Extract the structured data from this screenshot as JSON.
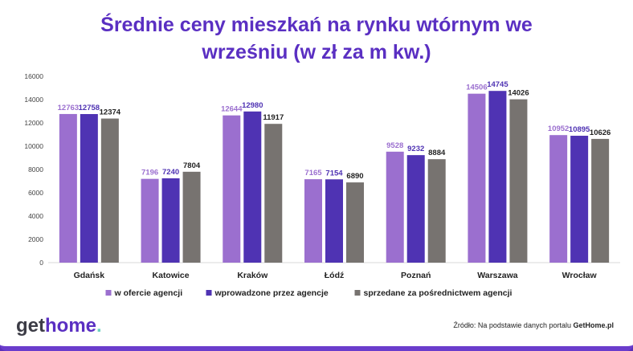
{
  "chart_data": {
    "type": "bar",
    "title_line1": "Średnie ceny mieszkań na rynku wtórnym we",
    "title_line2": "wrześniu (w zł za m kw.)",
    "categories": [
      "Gdańsk",
      "Katowice",
      "Kraków",
      "Łódź",
      "Poznań",
      "Warszawa",
      "Wrocław"
    ],
    "series": [
      {
        "name": "w ofercie agencji",
        "color": "#9b6fcf",
        "label_color": "#9b6fcf",
        "values": [
          12763,
          7196,
          12644,
          7165,
          9528,
          14506,
          10952
        ]
      },
      {
        "name": "wprowadzone przez agencje",
        "color": "#4f33b3",
        "label_color": "#4f33b3",
        "values": [
          12758,
          7240,
          12980,
          7154,
          9232,
          14745,
          10895
        ]
      },
      {
        "name": "sprzedane za pośrednictwem agencji",
        "color": "#777370",
        "label_color": "#222222",
        "values": [
          12374,
          7804,
          11917,
          6890,
          8884,
          14026,
          10626
        ]
      }
    ],
    "ylim": [
      0,
      16000
    ],
    "yticks": [
      "0",
      "2000",
      "4000",
      "6000",
      "8000",
      "10000",
      "12000",
      "14000",
      "16000"
    ],
    "grid": false,
    "legend_position": "bottom"
  },
  "footer": {
    "logo_part1": "get",
    "logo_part2": "home",
    "logo_dot": ".",
    "source_prefix": "Źródło: Na podstawie danych portalu ",
    "source_bold": "GetHome.pl"
  }
}
